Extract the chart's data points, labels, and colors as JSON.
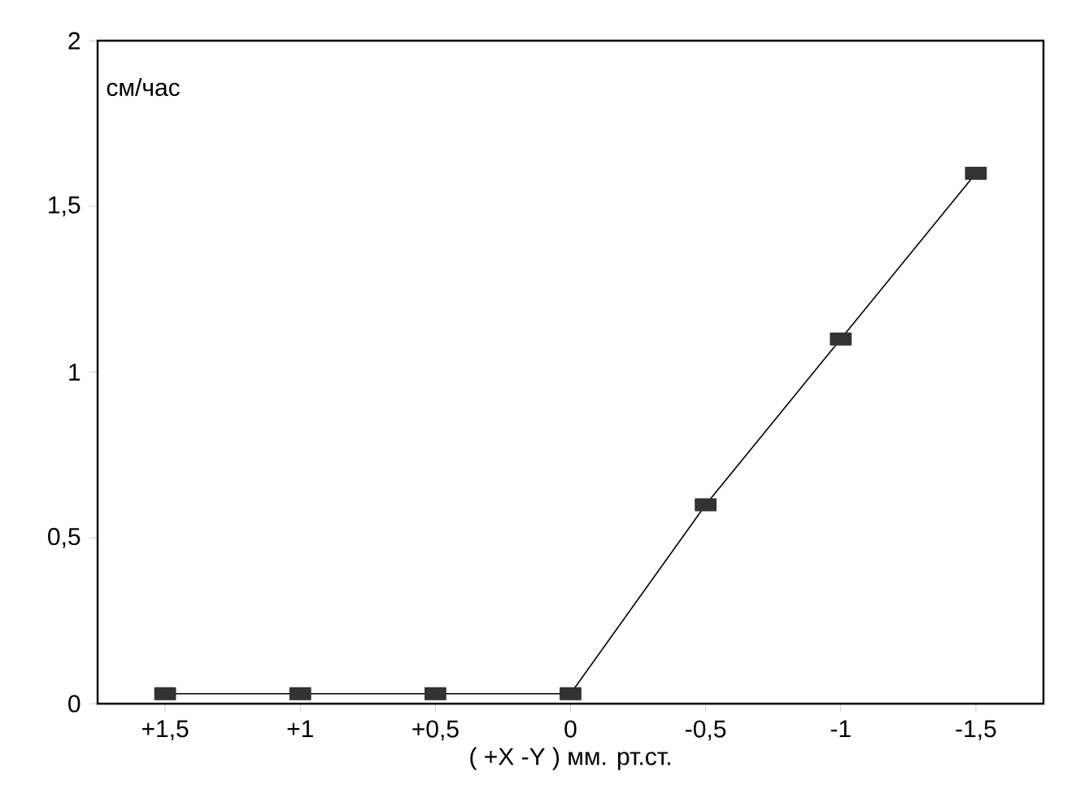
{
  "chart_data": {
    "type": "line",
    "xlabel": "( +X -Y ) мм. рт.ст.",
    "ylabel": "см/час",
    "categories": [
      "+1,5",
      "+1",
      "+0,5",
      "0",
      "-0,5",
      "-1",
      "-1,5"
    ],
    "series": [
      {
        "color": "#333333",
        "values": [
          0.03,
          0.03,
          0.03,
          0.03,
          0.6,
          1.1,
          1.6
        ]
      }
    ],
    "ylim": [
      0,
      2
    ],
    "yticks": [
      0,
      {
        "value": 0.5,
        "label": "0,5"
      },
      1,
      {
        "value": 1.5,
        "label": "1,5"
      },
      2
    ],
    "marker": "square",
    "line_style": "solid",
    "grid": false
  }
}
